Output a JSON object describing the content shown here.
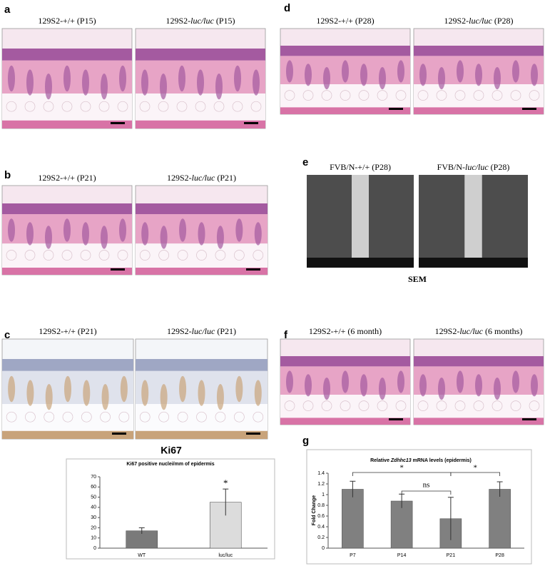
{
  "panels": [
    {
      "letter": "a",
      "images": [
        {
          "label": [
            "129S2-+/+ (P15)"
          ]
        },
        {
          "label": [
            "129S2-",
            "luc/luc",
            " (P15)"
          ]
        }
      ]
    },
    {
      "letter": "b",
      "images": [
        {
          "label": [
            "129S2-+/+ (P21)"
          ]
        },
        {
          "label": [
            "129S2-",
            "luc/luc",
            " (P21)"
          ]
        }
      ]
    },
    {
      "letter": "c",
      "images": [
        {
          "label": [
            "129S2-+/+ (P21)"
          ]
        },
        {
          "label": [
            "129S2-",
            "luc/luc",
            " (P21)"
          ]
        }
      ]
    },
    {
      "letter": "d",
      "images": [
        {
          "label": [
            "129S2-+/+ (P28)"
          ]
        },
        {
          "label": [
            "129S2-",
            "luc/luc",
            " (P28)"
          ]
        }
      ]
    },
    {
      "letter": "e",
      "images": [
        {
          "label": [
            "FVB/N-+/+ (P28)"
          ]
        },
        {
          "label": [
            "FVB/N-",
            "luc/luc",
            " (P28)"
          ]
        }
      ],
      "caption": "SEM"
    },
    {
      "letter": "f",
      "images": [
        {
          "label": [
            "129S2-+/+ (6 month)"
          ]
        },
        {
          "label": [
            "129S2-",
            "luc/luc",
            " (6 months)"
          ]
        }
      ]
    },
    {
      "letter": "g"
    }
  ],
  "chart_data": [
    {
      "type": "bar",
      "heading": "Ki67",
      "title": [
        "Ki67 positive nuclei/mm of epidermis"
      ],
      "categories": [
        "WT",
        "luc/luc"
      ],
      "values": [
        17,
        45
      ],
      "errors": [
        3,
        13
      ],
      "colors": [
        "#7a7a7a",
        "#dcdcdc"
      ],
      "ylim": [
        0,
        70
      ],
      "yticks": [
        0,
        10,
        20,
        30,
        40,
        50,
        60,
        70
      ],
      "annotations": [
        "*"
      ]
    },
    {
      "type": "bar",
      "title": [
        "Relative ",
        "Zdhhc13",
        " mRNA levels (epidermis)"
      ],
      "ylabel": "Fold Change",
      "categories": [
        "P7",
        "P14",
        "P21",
        "P28"
      ],
      "values": [
        1.1,
        0.88,
        0.55,
        1.1
      ],
      "errors": [
        0.15,
        0.13,
        0.4,
        0.14
      ],
      "colors": [
        "#808080",
        "#808080",
        "#808080",
        "#808080"
      ],
      "ylim": [
        0,
        1.4
      ],
      "yticks": [
        0,
        0.2,
        0.4,
        0.6,
        0.8,
        1,
        1.2,
        1.4
      ],
      "annotations": [
        "*",
        "ns",
        "*"
      ]
    }
  ]
}
